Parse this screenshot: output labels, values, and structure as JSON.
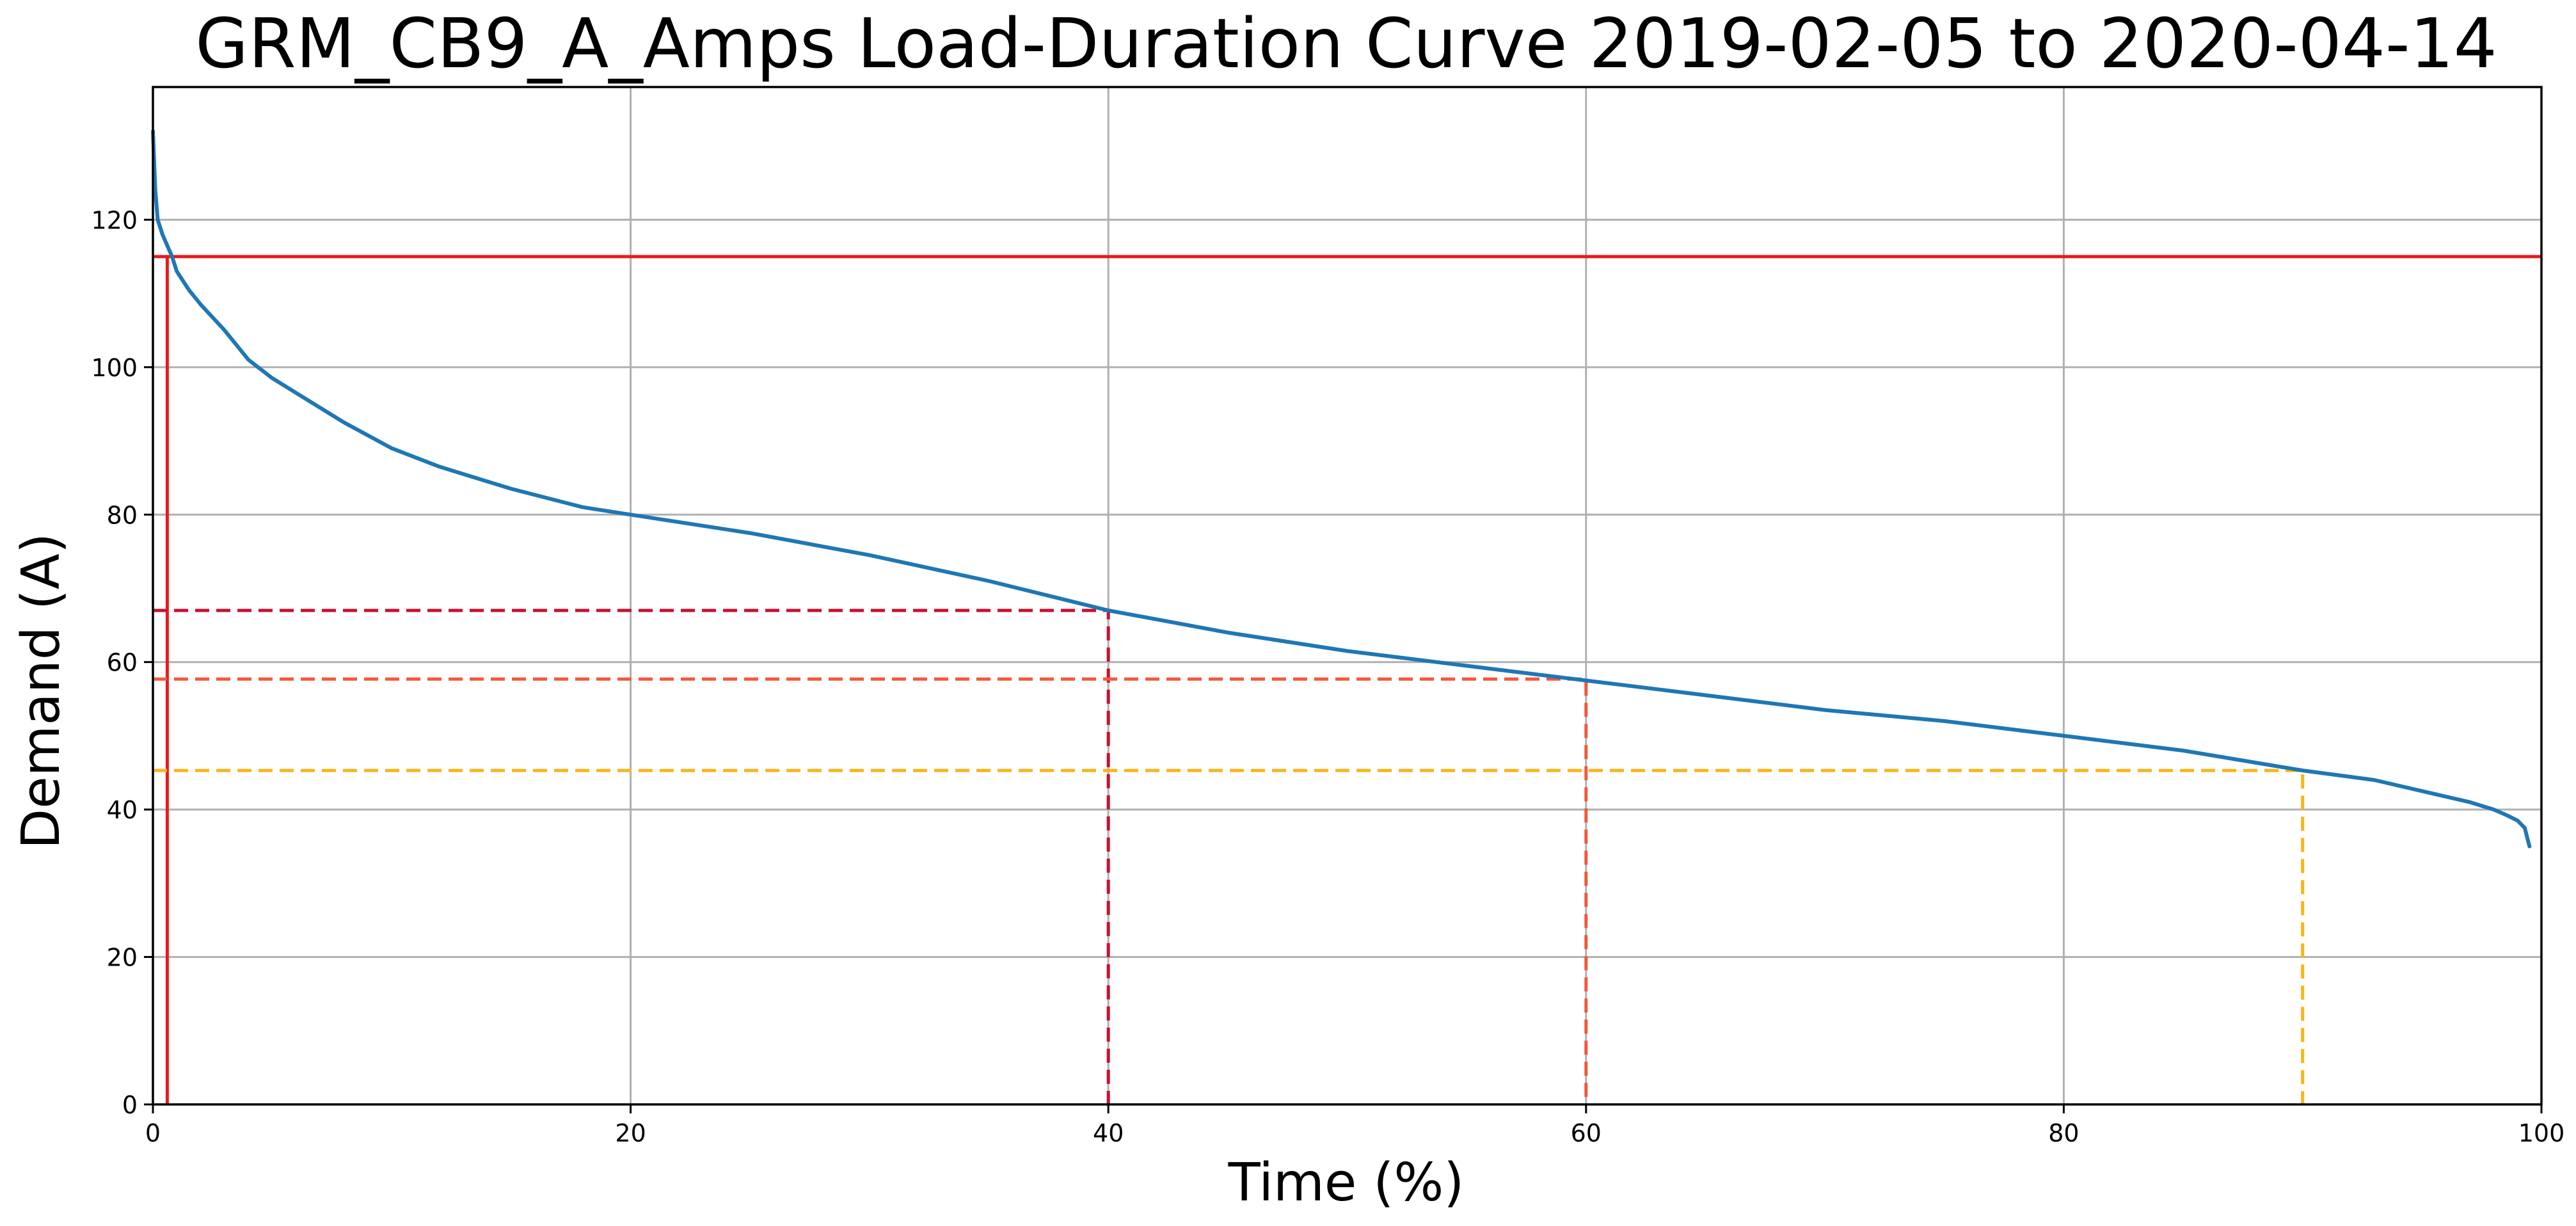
{
  "chart_data": {
    "type": "line",
    "title": "GRM_CB9_A_Amps Load-Duration Curve 2019-02-05 to 2020-04-14",
    "xlabel": "Time (%)",
    "ylabel": "Demand (A)",
    "xlim": [
      0,
      100
    ],
    "ylim": [
      0,
      138
    ],
    "xticks": [
      0,
      20,
      40,
      60,
      80,
      100
    ],
    "yticks": [
      0,
      20,
      40,
      60,
      80,
      100,
      120
    ],
    "grid": true,
    "legend": "none",
    "series": [
      {
        "color": "#1f77b4",
        "x": [
          0,
          0.1,
          0.2,
          0.4,
          0.6,
          0.8,
          1,
          1.5,
          2,
          3,
          4,
          5,
          6,
          8,
          10,
          12,
          15,
          18,
          20,
          25,
          30,
          35,
          40,
          45,
          50,
          55,
          60,
          65,
          70,
          75,
          80,
          85,
          90,
          93,
          95,
          97,
          98,
          98.5,
          99,
          99.3,
          99.5
        ],
        "y": [
          132,
          124,
          120,
          118,
          116.5,
          115,
          113,
          110.5,
          108.5,
          105,
          101,
          98.5,
          96.5,
          92.5,
          89,
          86.5,
          83.5,
          81,
          80,
          77.5,
          74.5,
          71,
          67,
          64,
          61.5,
          59.5,
          57.5,
          55.5,
          53.5,
          52,
          50,
          48,
          45.3,
          44,
          42.5,
          41,
          40,
          39.3,
          38.5,
          37.5,
          35
        ]
      }
    ],
    "reference_lines": [
      {
        "orientation": "horizontal",
        "y": 115,
        "color": "#e8191e",
        "style": "solid"
      },
      {
        "orientation": "vertical",
        "x": 0.6,
        "y_top": 115,
        "color": "#e8191e",
        "style": "solid"
      },
      {
        "x": 40,
        "y": 67,
        "color": "#c8102e",
        "style": "dashed"
      },
      {
        "x": 60,
        "y": 57.7,
        "color": "#f4573c",
        "style": "dashed"
      },
      {
        "x": 90,
        "y": 45.3,
        "color": "#fbb41a",
        "style": "dashed"
      }
    ]
  }
}
